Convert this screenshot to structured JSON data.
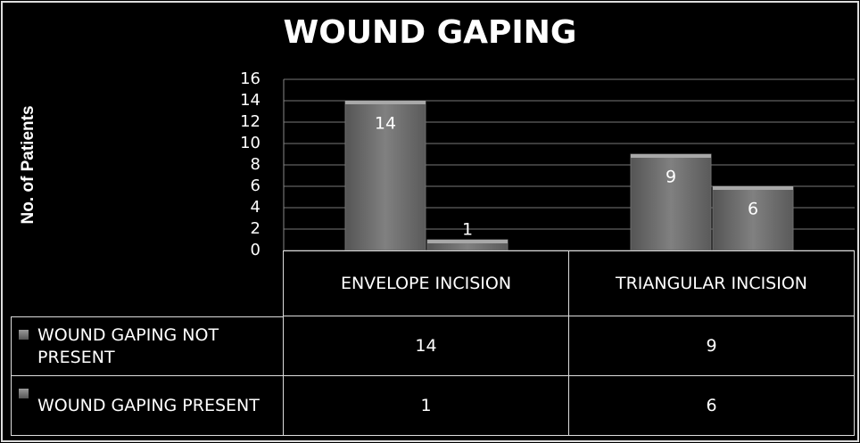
{
  "chart_data": {
    "type": "bar",
    "title": "WOUND GAPING",
    "y_label": "No. of Patients",
    "categories": [
      "ENVELOPE INCISION",
      "TRIANGULAR INCISION"
    ],
    "series": [
      {
        "name": "WOUND GAPING NOT PRESENT",
        "color": "#6e6e6e",
        "values": [
          14,
          9
        ]
      },
      {
        "name": "WOUND GAPING PRESENT",
        "color": "#6e6e6e",
        "values": [
          1,
          6
        ]
      }
    ],
    "ylim": [
      0,
      16
    ],
    "yticks": [
      0,
      2,
      4,
      6,
      8,
      10,
      12,
      14,
      16
    ],
    "grid": true
  }
}
